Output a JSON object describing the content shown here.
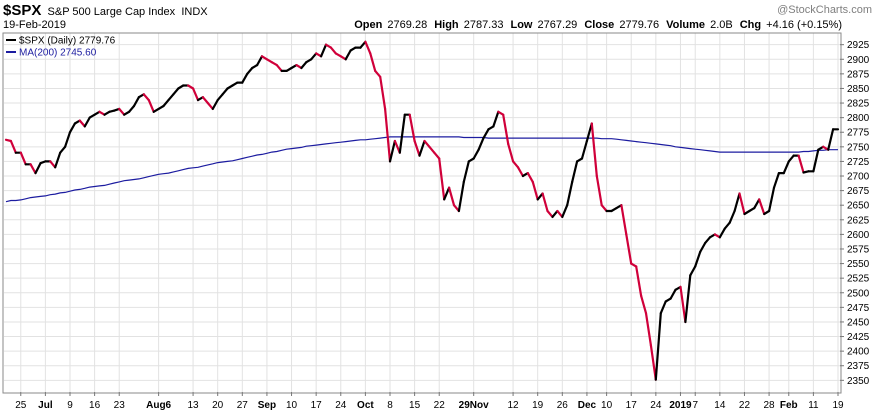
{
  "header": {
    "symbol": "$SPX",
    "name": "S&P 500 Large Cap Index",
    "exchange": "INDX",
    "date": "19-Feb-2019",
    "watermark": "@StockCharts.com",
    "quote": [
      {
        "label": "Open",
        "value": "2769.28"
      },
      {
        "label": "High",
        "value": "2787.33"
      },
      {
        "label": "Low",
        "value": "2767.29"
      },
      {
        "label": "Close",
        "value": "2779.76"
      },
      {
        "label": "Volume",
        "value": "2.0B"
      },
      {
        "label": "Chg",
        "value": "+4.16 (+0.15%)"
      }
    ]
  },
  "colors": {
    "up": "#000000",
    "down": "#d0003a",
    "ma": "#1c1ca0",
    "grid": "#e2e2e2",
    "axis": "#777777"
  },
  "chart_data": {
    "type": "line",
    "legend": [
      {
        "label": "$SPX (Daily) 2779.76",
        "color": "#000000"
      },
      {
        "label": "MA(200) 2745.60",
        "color": "#1c1ca0"
      }
    ],
    "legend_position": "top-left",
    "ylim": [
      2330,
      2945
    ],
    "y_ticks": [
      2350,
      2375,
      2400,
      2425,
      2450,
      2475,
      2500,
      2525,
      2550,
      2575,
      2600,
      2625,
      2650,
      2675,
      2700,
      2725,
      2750,
      2775,
      2800,
      2825,
      2850,
      2875,
      2900,
      2925
    ],
    "x_range": [
      0,
      165
    ],
    "x_ticks": [
      {
        "label": "25",
        "i": 3
      },
      {
        "label": "Jul",
        "i": 8,
        "bold": true
      },
      {
        "label": "9",
        "i": 13
      },
      {
        "label": "16",
        "i": 18
      },
      {
        "label": "23",
        "i": 23
      },
      {
        "label": "Aug6",
        "i": 31,
        "bold": true
      },
      {
        "label": "13",
        "i": 38
      },
      {
        "label": "20",
        "i": 43
      },
      {
        "label": "27",
        "i": 48
      },
      {
        "label": "Sep",
        "i": 53,
        "bold": true
      },
      {
        "label": "10",
        "i": 58
      },
      {
        "label": "17",
        "i": 63
      },
      {
        "label": "24",
        "i": 68
      },
      {
        "label": "Oct",
        "i": 73,
        "bold": true
      },
      {
        "label": "8",
        "i": 78
      },
      {
        "label": "15",
        "i": 83
      },
      {
        "label": "22",
        "i": 88
      },
      {
        "label": "29Nov",
        "i": 95,
        "bold": true
      },
      {
        "label": "12",
        "i": 103
      },
      {
        "label": "19",
        "i": 108
      },
      {
        "label": "26",
        "i": 113
      },
      {
        "label": "Dec",
        "i": 118,
        "bold": true
      },
      {
        "label": "10",
        "i": 122
      },
      {
        "label": "17",
        "i": 127
      },
      {
        "label": "24",
        "i": 132
      },
      {
        "label": "2019",
        "i": 137,
        "bold": true
      },
      {
        "label": "7",
        "i": 140
      },
      {
        "label": "14",
        "i": 145
      },
      {
        "label": "22",
        "i": 150
      },
      {
        "label": "28",
        "i": 155
      },
      {
        "label": "Feb",
        "i": 159,
        "bold": true
      },
      {
        "label": "11",
        "i": 164
      },
      {
        "label": "19",
        "i": 169
      }
    ],
    "series": [
      {
        "name": "$SPX (Daily)",
        "values": [
          2762,
          2760,
          2740,
          2740,
          2720,
          2720,
          2705,
          2722,
          2725,
          2725,
          2715,
          2740,
          2750,
          2775,
          2790,
          2795,
          2785,
          2800,
          2805,
          2810,
          2805,
          2810,
          2812,
          2815,
          2805,
          2810,
          2820,
          2835,
          2840,
          2830,
          2810,
          2815,
          2820,
          2830,
          2840,
          2850,
          2855,
          2855,
          2850,
          2830,
          2835,
          2825,
          2815,
          2830,
          2840,
          2850,
          2855,
          2860,
          2860,
          2875,
          2885,
          2890,
          2905,
          2900,
          2895,
          2890,
          2880,
          2880,
          2885,
          2890,
          2885,
          2895,
          2900,
          2910,
          2905,
          2925,
          2920,
          2910,
          2905,
          2900,
          2915,
          2920,
          2920,
          2930,
          2910,
          2880,
          2870,
          2815,
          2725,
          2760,
          2740,
          2805,
          2805,
          2760,
          2735,
          2760,
          2750,
          2740,
          2730,
          2660,
          2680,
          2650,
          2640,
          2690,
          2725,
          2730,
          2745,
          2765,
          2780,
          2785,
          2810,
          2805,
          2755,
          2725,
          2715,
          2700,
          2705,
          2690,
          2660,
          2670,
          2640,
          2630,
          2640,
          2630,
          2650,
          2690,
          2725,
          2730,
          2760,
          2790,
          2700,
          2650,
          2640,
          2640,
          2645,
          2650,
          2600,
          2550,
          2545,
          2495,
          2465,
          2410,
          2351,
          2465,
          2485,
          2490,
          2505,
          2510,
          2450,
          2530,
          2545,
          2570,
          2585,
          2595,
          2600,
          2595,
          2610,
          2620,
          2640,
          2670,
          2635,
          2640,
          2645,
          2660,
          2635,
          2640,
          2680,
          2705,
          2705,
          2725,
          2735,
          2735,
          2706,
          2708,
          2708,
          2745,
          2750,
          2745,
          2780,
          2780
        ],
        "color_rule": "black when rising, red when falling"
      },
      {
        "name": "MA(200)",
        "values": [
          2656,
          2658,
          2658,
          2659,
          2661,
          2663,
          2664,
          2665,
          2666,
          2668,
          2669,
          2671,
          2672,
          2674,
          2676,
          2677,
          2679,
          2681,
          2682,
          2683,
          2684,
          2686,
          2688,
          2690,
          2692,
          2693,
          2694,
          2695,
          2697,
          2699,
          2701,
          2703,
          2704,
          2705,
          2707,
          2709,
          2711,
          2713,
          2714,
          2715,
          2717,
          2719,
          2721,
          2723,
          2724,
          2725,
          2726,
          2728,
          2730,
          2732,
          2734,
          2736,
          2737,
          2739,
          2741,
          2742,
          2744,
          2746,
          2747,
          2748,
          2749,
          2751,
          2752,
          2753,
          2754,
          2755,
          2756,
          2757,
          2758,
          2759,
          2760,
          2761,
          2762,
          2762,
          2763,
          2764,
          2765,
          2766,
          2767,
          2767,
          2767,
          2767,
          2767,
          2767,
          2767,
          2767,
          2767,
          2767,
          2767,
          2767,
          2767,
          2767,
          2767,
          2766,
          2766,
          2766,
          2766,
          2766,
          2765,
          2765,
          2765,
          2765,
          2765,
          2765,
          2765,
          2765,
          2765,
          2765,
          2765,
          2765,
          2765,
          2765,
          2765,
          2765,
          2765,
          2765,
          2765,
          2765,
          2765,
          2765,
          2765,
          2764,
          2764,
          2764,
          2763,
          2762,
          2761,
          2760,
          2759,
          2758,
          2757,
          2756,
          2755,
          2754,
          2753,
          2752,
          2750,
          2749,
          2748,
          2747,
          2746,
          2745,
          2744,
          2743,
          2742,
          2741,
          2741,
          2741,
          2741,
          2741,
          2741,
          2741,
          2741,
          2741,
          2741,
          2741,
          2741,
          2741,
          2741,
          2741,
          2741,
          2741,
          2742,
          2742,
          2743,
          2744,
          2744,
          2745,
          2745,
          2745
        ]
      }
    ]
  }
}
